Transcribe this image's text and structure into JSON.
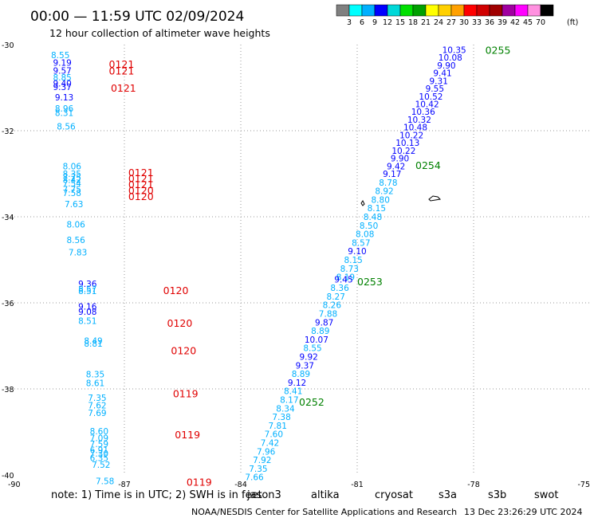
{
  "title": "00:00 — 11:59 UTC 02/09/2024",
  "subtitle": "12 hour collection of altimeter wave heights",
  "colorbar": {
    "unit": "(ft)",
    "labels": [
      "3",
      "6",
      "9",
      "12",
      "15",
      "18",
      "21",
      "24",
      "27",
      "30",
      "33",
      "36",
      "39",
      "42",
      "45",
      "70"
    ],
    "colors": [
      "#808080",
      "#00ffff",
      "#00b0ff",
      "#0000ff",
      "#00d8d8",
      "#00e000",
      "#00a000",
      "#ffff00",
      "#ffd000",
      "#ffa000",
      "#ff0000",
      "#d00000",
      "#a00000",
      "#a000a0",
      "#ff00ff",
      "#ff90e0",
      "#000000"
    ]
  },
  "note": {
    "text": "note:  1) Time is in UTC; 2) SWH is in feet",
    "satellites": [
      {
        "name": "jason3",
        "color": "#00a000"
      },
      {
        "name": "altika",
        "color": "#ffa000"
      },
      {
        "name": "cryosat",
        "color": "#ff0000"
      },
      {
        "name": "s3a",
        "color": "#a00000"
      },
      {
        "name": "s3b",
        "color": "#c8a8ff"
      },
      {
        "name": "swot",
        "color": "#ff90e0"
      }
    ]
  },
  "credit": "NOAA/NESDIS Center for Satellite Applications and Research",
  "timestamp": "13 Dec 23:26:29 UTC 2024",
  "chart_data": {
    "type": "scatter",
    "xlim": [
      -90,
      -75
    ],
    "ylim": [
      -40,
      -30
    ],
    "xticks": [
      -90,
      -87,
      -84,
      -81,
      -78,
      -75
    ],
    "yticks": [
      -30,
      -32,
      -34,
      -36,
      -38,
      -40
    ],
    "grid": "dotted",
    "color_scale": [
      {
        "max": 6,
        "color": "#00ffff"
      },
      {
        "max": 9,
        "color": "#00b0ff"
      },
      {
        "max": 12,
        "color": "#0000ff"
      }
    ],
    "jason3_track": [
      {
        "x": -78.5,
        "y": -30.12,
        "swh": 10.35
      },
      {
        "x": -78.6,
        "y": -30.3,
        "swh": 10.08
      },
      {
        "x": -78.7,
        "y": -30.48,
        "swh": 9.9
      },
      {
        "x": -78.8,
        "y": -30.66,
        "swh": 9.41
      },
      {
        "x": -78.9,
        "y": -30.84,
        "swh": 9.31
      },
      {
        "x": -79.0,
        "y": -31.02,
        "swh": 9.55
      },
      {
        "x": -79.1,
        "y": -31.2,
        "swh": 10.52
      },
      {
        "x": -79.2,
        "y": -31.38,
        "swh": 10.42
      },
      {
        "x": -79.3,
        "y": -31.56,
        "swh": 10.36
      },
      {
        "x": -79.4,
        "y": -31.74,
        "swh": 10.32
      },
      {
        "x": -79.5,
        "y": -31.92,
        "swh": 10.48
      },
      {
        "x": -79.6,
        "y": -32.1,
        "swh": 10.22
      },
      {
        "x": -79.7,
        "y": -32.28,
        "swh": 10.13
      },
      {
        "x": -79.8,
        "y": -32.46,
        "swh": 10.22
      },
      {
        "x": -79.9,
        "y": -32.64,
        "swh": 9.9
      },
      {
        "x": -80.0,
        "y": -32.82,
        "swh": 9.42
      },
      {
        "x": -80.1,
        "y": -33.0,
        "swh": 9.17
      },
      {
        "x": -80.2,
        "y": -33.2,
        "swh": 8.78
      },
      {
        "x": -80.3,
        "y": -33.4,
        "swh": 8.92
      },
      {
        "x": -80.4,
        "y": -33.6,
        "swh": 8.8
      },
      {
        "x": -80.5,
        "y": -33.8,
        "swh": 8.15
      },
      {
        "x": -80.6,
        "y": -34.0,
        "swh": 8.48
      },
      {
        "x": -80.7,
        "y": -34.2,
        "swh": 8.5
      },
      {
        "x": -80.8,
        "y": -34.4,
        "swh": 8.08
      },
      {
        "x": -80.9,
        "y": -34.6,
        "swh": 8.57
      },
      {
        "x": -81.0,
        "y": -34.8,
        "swh": 9.1
      },
      {
        "x": -81.1,
        "y": -35.0,
        "swh": 8.15
      },
      {
        "x": -81.2,
        "y": -35.2,
        "swh": 8.73
      },
      {
        "x": -81.3,
        "y": -35.4,
        "swh": 8.19
      },
      {
        "x": -81.35,
        "y": -35.45,
        "swh": 9.45
      },
      {
        "x": -81.45,
        "y": -35.65,
        "swh": 8.36
      },
      {
        "x": -81.55,
        "y": -35.85,
        "swh": 8.27
      },
      {
        "x": -81.65,
        "y": -36.05,
        "swh": 8.26
      },
      {
        "x": -81.75,
        "y": -36.25,
        "swh": 7.88
      },
      {
        "x": -81.85,
        "y": -36.45,
        "swh": 9.87
      },
      {
        "x": -81.95,
        "y": -36.65,
        "swh": 8.89
      },
      {
        "x": -82.05,
        "y": -36.85,
        "swh": 10.07
      },
      {
        "x": -82.15,
        "y": -37.05,
        "swh": 8.55
      },
      {
        "x": -82.25,
        "y": -37.25,
        "swh": 9.92
      },
      {
        "x": -82.35,
        "y": -37.45,
        "swh": 9.37
      },
      {
        "x": -82.45,
        "y": -37.65,
        "swh": 8.89
      },
      {
        "x": -82.55,
        "y": -37.85,
        "swh": 9.12
      },
      {
        "x": -82.65,
        "y": -38.05,
        "swh": 8.41
      },
      {
        "x": -82.75,
        "y": -38.25,
        "swh": 8.17
      },
      {
        "x": -82.85,
        "y": -38.45,
        "swh": 8.34
      },
      {
        "x": -82.95,
        "y": -38.65,
        "swh": 7.38
      },
      {
        "x": -83.05,
        "y": -38.85,
        "swh": 7.81
      },
      {
        "x": -83.15,
        "y": -39.05,
        "swh": 7.6
      },
      {
        "x": -83.25,
        "y": -39.25,
        "swh": 7.42
      },
      {
        "x": -83.35,
        "y": -39.45,
        "swh": 7.96
      },
      {
        "x": -83.45,
        "y": -39.65,
        "swh": 7.92
      },
      {
        "x": -83.55,
        "y": -39.85,
        "swh": 7.35
      },
      {
        "x": -83.65,
        "y": -40.05,
        "swh": 7.66
      }
    ],
    "jason3_times": [
      {
        "x": -77.7,
        "y": -30.12,
        "label": "0255"
      },
      {
        "x": -79.5,
        "y": -32.8,
        "label": "0254"
      },
      {
        "x": -81.0,
        "y": -35.5,
        "label": "0253"
      },
      {
        "x": -82.5,
        "y": -38.3,
        "label": "0252"
      }
    ],
    "cryosat_track": [
      {
        "x": -88.65,
        "y": -30.24,
        "swh": 8.55
      },
      {
        "x": -88.6,
        "y": -30.42,
        "swh": 9.19
      },
      {
        "x": -88.6,
        "y": -30.6,
        "swh": 9.57
      },
      {
        "x": -88.6,
        "y": -30.76,
        "swh": 8.85
      },
      {
        "x": -88.6,
        "y": -30.9,
        "swh": 9.4
      },
      {
        "x": -88.6,
        "y": -30.98,
        "swh": 9.37
      },
      {
        "x": -88.55,
        "y": -31.22,
        "swh": 9.13
      },
      {
        "x": -88.55,
        "y": -31.48,
        "swh": 8.96
      },
      {
        "x": -88.55,
        "y": -31.58,
        "swh": 8.31
      },
      {
        "x": -88.5,
        "y": -31.9,
        "swh": 8.56
      },
      {
        "x": -88.35,
        "y": -32.82,
        "swh": 8.06
      },
      {
        "x": -88.35,
        "y": -33.0,
        "swh": 8.35
      },
      {
        "x": -88.35,
        "y": -33.08,
        "swh": 7.75
      },
      {
        "x": -88.35,
        "y": -33.14,
        "swh": 8.42
      },
      {
        "x": -88.35,
        "y": -33.22,
        "swh": 7.54
      },
      {
        "x": -88.35,
        "y": -33.36,
        "swh": 7.75
      },
      {
        "x": -88.35,
        "y": -33.44,
        "swh": 7.58
      },
      {
        "x": -88.3,
        "y": -33.7,
        "swh": 7.63
      },
      {
        "x": -88.25,
        "y": -34.18,
        "swh": 8.06
      },
      {
        "x": -88.25,
        "y": -34.54,
        "swh": 8.56
      },
      {
        "x": -88.2,
        "y": -34.82,
        "swh": 7.83
      },
      {
        "x": -87.95,
        "y": -35.56,
        "swh": 9.36
      },
      {
        "x": -87.95,
        "y": -35.68,
        "swh": 8.57
      },
      {
        "x": -87.95,
        "y": -35.72,
        "swh": 8.51
      },
      {
        "x": -87.95,
        "y": -36.08,
        "swh": 9.16
      },
      {
        "x": -87.95,
        "y": -36.2,
        "swh": 9.08
      },
      {
        "x": -87.95,
        "y": -36.42,
        "swh": 8.51
      },
      {
        "x": -87.8,
        "y": -36.88,
        "swh": 8.49
      },
      {
        "x": -87.8,
        "y": -36.94,
        "swh": 8.81
      },
      {
        "x": -87.75,
        "y": -37.66,
        "swh": 8.35
      },
      {
        "x": -87.75,
        "y": -37.86,
        "swh": 8.61
      },
      {
        "x": -87.7,
        "y": -38.2,
        "swh": 7.35
      },
      {
        "x": -87.7,
        "y": -38.38,
        "swh": 7.62
      },
      {
        "x": -87.7,
        "y": -38.56,
        "swh": 7.69
      },
      {
        "x": -87.65,
        "y": -38.98,
        "swh": 8.6
      },
      {
        "x": -87.65,
        "y": -39.14,
        "swh": 7.09
      },
      {
        "x": -87.65,
        "y": -39.28,
        "swh": 7.59
      },
      {
        "x": -87.65,
        "y": -39.42,
        "swh": 6.91
      },
      {
        "x": -87.65,
        "y": -39.5,
        "swh": 7.3
      },
      {
        "x": -87.65,
        "y": -39.6,
        "swh": 6.35
      },
      {
        "x": -87.6,
        "y": -39.76,
        "swh": 7.52
      },
      {
        "x": -87.5,
        "y": -40.14,
        "swh": 7.58
      }
    ],
    "cryosat_times": [
      {
        "x": -87.4,
        "y": -30.44,
        "label": "0121"
      },
      {
        "x": -87.4,
        "y": -30.6,
        "label": "0121"
      },
      {
        "x": -87.35,
        "y": -31.0,
        "label": "0121"
      },
      {
        "x": -86.9,
        "y": -32.96,
        "label": "0121"
      },
      {
        "x": -86.9,
        "y": -33.1,
        "label": "0121"
      },
      {
        "x": -86.9,
        "y": -33.24,
        "label": "0121"
      },
      {
        "x": -86.9,
        "y": -33.38,
        "label": "0120"
      },
      {
        "x": -86.9,
        "y": -33.52,
        "label": "0120"
      },
      {
        "x": -86.0,
        "y": -35.7,
        "label": "0120"
      },
      {
        "x": -85.9,
        "y": -36.46,
        "label": "0120"
      },
      {
        "x": -85.8,
        "y": -37.1,
        "label": "0120"
      },
      {
        "x": -85.75,
        "y": -38.1,
        "label": "0119"
      },
      {
        "x": -85.7,
        "y": -39.06,
        "label": "0119"
      },
      {
        "x": -85.4,
        "y": -40.16,
        "label": "0119"
      }
    ]
  }
}
